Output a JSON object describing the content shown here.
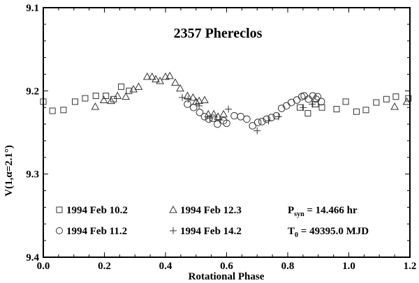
{
  "chart_data": {
    "type": "scatter",
    "title": "2357 Phereclos",
    "xlabel": "Rotational Phase",
    "ylabel": "V(1,α=2.1°)",
    "xlim": [
      0.0,
      1.2
    ],
    "ylim": [
      9.4,
      9.1
    ],
    "y_inverted": true,
    "grid": false,
    "x_ticks": [
      "0.0",
      "0.2",
      "0.4",
      "0.6",
      "0.8",
      "1.0",
      "1.2"
    ],
    "y_ticks": [
      "9.1",
      "9.2",
      "9.3",
      "9.4"
    ],
    "legend_position": "lower-left inside",
    "annotations": {
      "period_label": "P",
      "period_sub": "syn",
      "period_value": " = 14.466 hr",
      "epoch_label": "T",
      "epoch_sub": "0",
      "epoch_value": " = 49395.0 MJD"
    },
    "series": [
      {
        "name": "1994 Feb 10.2",
        "marker": "square",
        "points": [
          [
            0.0,
            9.213
          ],
          [
            0.03,
            9.224
          ],
          [
            0.066,
            9.223
          ],
          [
            0.104,
            9.213
          ],
          [
            0.137,
            9.209
          ],
          [
            0.172,
            9.206
          ],
          [
            0.205,
            9.206
          ],
          [
            0.23,
            9.21
          ],
          [
            0.255,
            9.195
          ],
          [
            0.281,
            9.2
          ],
          [
            0.84,
            9.22
          ],
          [
            0.866,
            9.227
          ],
          [
            0.891,
            9.216
          ],
          [
            0.912,
            9.22
          ],
          [
            0.96,
            9.222
          ],
          [
            0.99,
            9.213
          ],
          [
            1.025,
            9.225
          ],
          [
            1.056,
            9.223
          ],
          [
            1.09,
            9.214
          ],
          [
            1.123,
            9.21
          ],
          [
            1.154,
            9.207
          ],
          [
            1.195,
            9.209
          ]
        ]
      },
      {
        "name": "1994 Feb 11.2",
        "marker": "circle",
        "points": [
          [
            0.472,
            9.216
          ],
          [
            0.492,
            9.22
          ],
          [
            0.512,
            9.226
          ],
          [
            0.528,
            9.231
          ],
          [
            0.542,
            9.234
          ],
          [
            0.556,
            9.233
          ],
          [
            0.57,
            9.24
          ],
          [
            0.59,
            9.236
          ],
          [
            0.6,
            9.239
          ],
          [
            0.625,
            9.23
          ],
          [
            0.646,
            9.231
          ],
          [
            0.666,
            9.234
          ],
          [
            0.685,
            9.242
          ],
          [
            0.702,
            9.238
          ],
          [
            0.716,
            9.237
          ],
          [
            0.731,
            9.234
          ],
          [
            0.747,
            9.232
          ],
          [
            0.763,
            9.23
          ],
          [
            0.78,
            9.221
          ],
          [
            0.796,
            9.218
          ],
          [
            0.812,
            9.214
          ],
          [
            0.83,
            9.211
          ],
          [
            0.846,
            9.207
          ],
          [
            0.854,
            9.206
          ],
          [
            0.868,
            9.21
          ],
          [
            0.882,
            9.206
          ],
          [
            0.893,
            9.21
          ],
          [
            0.898,
            9.207
          ],
          [
            0.91,
            9.213
          ]
        ]
      },
      {
        "name": "1994 Feb 12.3",
        "marker": "triangle",
        "points": [
          [
            0.17,
            9.219
          ],
          [
            0.198,
            9.211
          ],
          [
            0.222,
            9.212
          ],
          [
            0.243,
            9.206
          ],
          [
            0.27,
            9.207
          ],
          [
            0.295,
            9.198
          ],
          [
            0.312,
            9.195
          ],
          [
            0.34,
            9.183
          ],
          [
            0.356,
            9.183
          ],
          [
            0.368,
            9.186
          ],
          [
            0.382,
            9.188
          ],
          [
            0.4,
            9.183
          ],
          [
            0.414,
            9.182
          ],
          [
            0.432,
            9.19
          ],
          [
            0.448,
            9.197
          ],
          [
            0.472,
            9.206
          ],
          [
            0.49,
            9.208
          ],
          [
            0.5,
            9.213
          ],
          [
            0.51,
            9.212
          ],
          [
            0.528,
            9.211
          ],
          [
            0.54,
            9.228
          ],
          [
            0.558,
            9.228
          ],
          [
            0.572,
            9.231
          ],
          [
            0.59,
            9.228
          ],
          [
            1.15,
            9.219
          ],
          [
            1.19,
            9.213
          ]
        ]
      },
      {
        "name": "1994 Feb 14.2",
        "marker": "plus",
        "points": [
          [
            0.455,
            9.208
          ],
          [
            0.474,
            9.21
          ],
          [
            0.51,
            9.218
          ],
          [
            0.545,
            9.233
          ],
          [
            0.578,
            9.235
          ],
          [
            0.606,
            9.222
          ],
          [
            0.7,
            9.248
          ],
          [
            0.737,
            9.236
          ],
          [
            0.77,
            9.231
          ],
          [
            0.851,
            9.22
          ],
          [
            0.88,
            9.216
          ]
        ]
      }
    ]
  }
}
